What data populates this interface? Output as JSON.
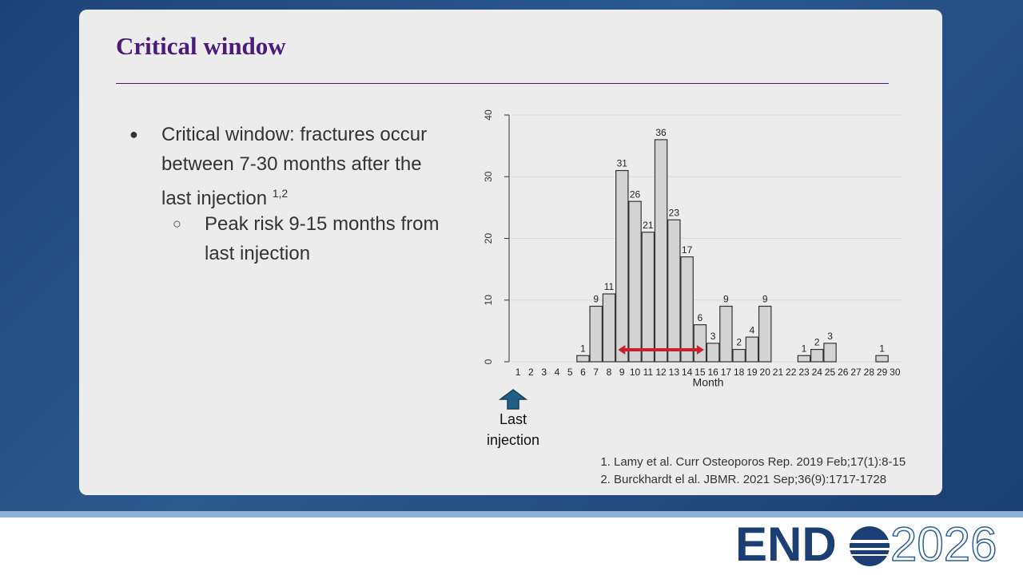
{
  "slide": {
    "title": "Critical window",
    "bullets": [
      {
        "text": "Critical window: fractures occur between 7-30 months after the last injection",
        "superscript": "1,2"
      }
    ],
    "sub_bullets": [
      "Peak risk 9-15  months from last injection"
    ],
    "annotation": "Last injection",
    "references": [
      "Lamy et al. Curr Osteoporos Rep. 2019 Feb;17(1):8-15",
      "Burckhardt el al. JBMR. 2021 Sep;36(9):1717-1728"
    ],
    "logo": {
      "prefix": "END",
      "suffix": "2026"
    }
  },
  "chart_data": {
    "type": "bar",
    "x_label": "Month",
    "categories": [
      "1",
      "2",
      "3",
      "4",
      "5",
      "6",
      "7",
      "8",
      "9",
      "10",
      "11",
      "12",
      "13",
      "14",
      "15",
      "16",
      "17",
      "18",
      "19",
      "20",
      "21",
      "22",
      "23",
      "24",
      "25",
      "26",
      "27",
      "28",
      "29",
      "30"
    ],
    "values": [
      0,
      0,
      0,
      0,
      0,
      1,
      9,
      11,
      31,
      26,
      21,
      36,
      23,
      17,
      6,
      3,
      9,
      2,
      4,
      9,
      0,
      0,
      1,
      2,
      3,
      0,
      0,
      0,
      1,
      0
    ],
    "color": "#d3d3d3",
    "ylim": [
      0,
      40
    ],
    "yticks": [
      0,
      10,
      20,
      30,
      40
    ],
    "grid": true,
    "peak_range": [
      9,
      15
    ],
    "peak_color": "#cc1f2b"
  }
}
